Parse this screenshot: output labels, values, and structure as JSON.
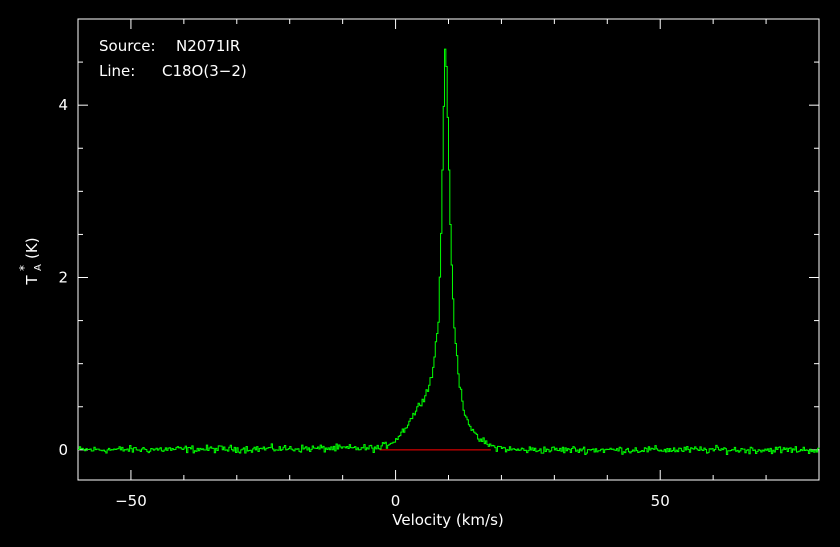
{
  "chart_data": {
    "type": "line",
    "xlabel": "Velocity (km/s)",
    "ylabel_main": "T",
    "ylabel_sub": "A",
    "ylabel_sup": "*",
    "ylabel_unit": "(K)",
    "xlim": [
      -60,
      80
    ],
    "ylim": [
      -0.35,
      5.0
    ],
    "x_major_ticks": [
      -50,
      0,
      50
    ],
    "x_tick_labels": [
      "−50",
      "0",
      "50"
    ],
    "y_major_ticks": [
      0,
      2,
      4
    ],
    "y_tick_labels": [
      "0",
      "2",
      "4"
    ],
    "annotations": [
      {
        "key": "Source:",
        "value": "N2071IR"
      },
      {
        "key": "Line:",
        "value": "C18O(3−2)"
      }
    ],
    "colors": {
      "spectrum": "#00ff00",
      "baseline": "#ff0000",
      "axes": "#ffffff",
      "background": "#000000"
    },
    "baseline": {
      "x_start": -3,
      "x_end": 18,
      "y": 0
    },
    "noise_rms": 0.03,
    "series": [
      {
        "x": [
          -60,
          -3,
          0,
          2,
          4,
          6,
          7,
          8,
          8.5,
          9,
          9.3,
          9.6,
          10,
          10.5,
          11,
          12,
          13,
          15,
          18,
          22,
          80
        ],
        "values": [
          0.0,
          0.02,
          0.12,
          0.28,
          0.48,
          0.7,
          0.95,
          1.5,
          2.5,
          4.0,
          4.78,
          4.3,
          3.2,
          2.1,
          1.4,
          0.75,
          0.42,
          0.15,
          0.04,
          0.0,
          0.0
        ]
      }
    ]
  }
}
